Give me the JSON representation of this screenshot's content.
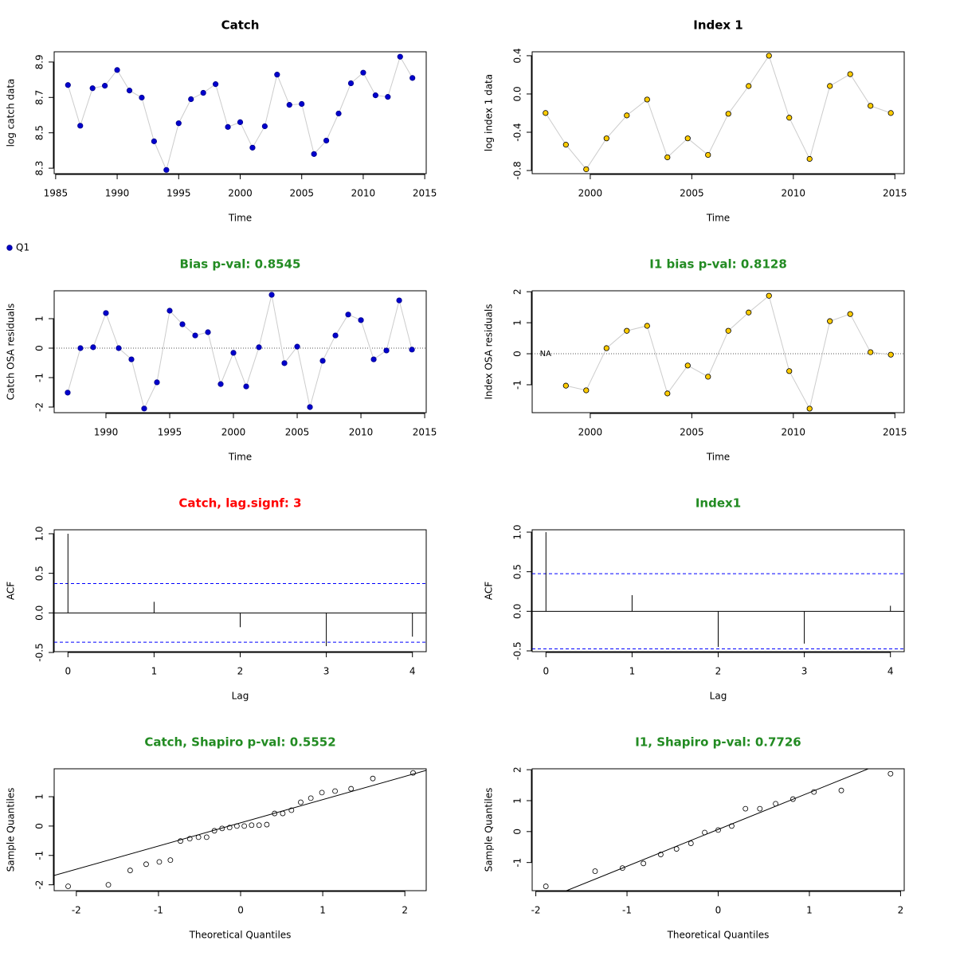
{
  "chart_data": [
    {
      "type": "line",
      "title": "Catch",
      "title_color": "#000000",
      "xlabel": "Time",
      "ylabel": "log catch data",
      "x": [
        1986,
        1987,
        1988,
        1989,
        1990,
        1991,
        1992,
        1993,
        1994,
        1995,
        1996,
        1997,
        1998,
        1999,
        2000,
        2001,
        2002,
        2003,
        2004,
        2005,
        2006,
        2007,
        2008,
        2009,
        2010,
        2011,
        2012,
        2013,
        2014
      ],
      "values": [
        8.77,
        8.54,
        8.752,
        8.766,
        8.855,
        8.739,
        8.699,
        8.452,
        8.29,
        8.554,
        8.69,
        8.726,
        8.775,
        8.533,
        8.56,
        8.416,
        8.537,
        8.829,
        8.658,
        8.663,
        8.38,
        8.456,
        8.609,
        8.78,
        8.84,
        8.712,
        8.703,
        8.93,
        8.81
      ],
      "color": "#0000cd",
      "xlim": [
        1984.88,
        2015.12
      ],
      "ylim": [
        8.269,
        8.958
      ],
      "xticks": [
        1985,
        1990,
        1995,
        2000,
        2005,
        2010,
        2015
      ],
      "yticks": [
        8.3,
        8.5,
        8.7,
        8.9
      ]
    },
    {
      "type": "line",
      "title": "Index 1",
      "title_color": "#000000",
      "xlabel": "Time",
      "ylabel": "log index 1 data",
      "x": [
        1997.8,
        1998.8,
        1999.8,
        2000.8,
        2001.8,
        2002.8,
        2003.8,
        2004.8,
        2005.8,
        2006.8,
        2007.8,
        2008.8,
        2009.8,
        2010.8,
        2011.8,
        2012.8,
        2013.8,
        2014.8
      ],
      "values": [
        -0.199,
        -0.53,
        -0.787,
        -0.464,
        -0.224,
        -0.058,
        -0.662,
        -0.464,
        -0.637,
        -0.207,
        0.083,
        0.4,
        -0.248,
        -0.679,
        0.083,
        0.207,
        -0.124,
        -0.199
      ],
      "color": "#ffcc00",
      "xlim": [
        1997.14,
        2015.46
      ],
      "ylim": [
        -0.833,
        0.441
      ],
      "xticks": [
        2000,
        2005,
        2010,
        2015
      ],
      "yticks": [
        -0.8,
        -0.4,
        {
          "value": 0,
          "label": "0.0"
        },
        0.4
      ]
    },
    {
      "type": "line",
      "title": "Bias p-val: 0.8545",
      "title_color": "#228b22",
      "xlabel": "Time",
      "ylabel": "Catch OSA residuals",
      "series_name": "Q1",
      "x": [
        1987,
        1988,
        1989,
        1990,
        1991,
        1992,
        1993,
        1994,
        1995,
        1996,
        1997,
        1998,
        1999,
        2000,
        2001,
        2002,
        2003,
        2004,
        2005,
        2006,
        2007,
        2008,
        2009,
        2010,
        2011,
        2012,
        2013,
        2014
      ],
      "values": [
        -1.51,
        0,
        0.03,
        1.19,
        0,
        -0.38,
        -2.05,
        -1.16,
        1.27,
        0.81,
        0.43,
        0.54,
        -1.22,
        -0.16,
        -1.3,
        0.03,
        1.81,
        -0.51,
        0.05,
        -2.0,
        -0.43,
        0.43,
        1.14,
        0.95,
        -0.38,
        -0.08,
        1.62,
        -0.05
      ],
      "color": "#0000cd",
      "hline": 0,
      "xlim": [
        1985.94,
        2015.12
      ],
      "ylim": [
        -2.19,
        1.946
      ],
      "xticks": [
        1990,
        1995,
        2000,
        2005,
        2010,
        2015
      ],
      "yticks": [
        -2,
        -1,
        0,
        1
      ]
    },
    {
      "type": "line",
      "title": "I1 bias p-val: 0.8128",
      "title_color": "#228b22",
      "xlabel": "Time",
      "ylabel": "Index OSA residuals",
      "na_label": "NA",
      "x": [
        1997.8,
        1998.8,
        1999.8,
        2000.8,
        2001.8,
        2002.8,
        2003.8,
        2004.8,
        2005.8,
        2006.8,
        2007.8,
        2008.8,
        2009.8,
        2010.8,
        2011.8,
        2012.8,
        2013.8,
        2014.8
      ],
      "values": [
        null,
        -1.03,
        -1.18,
        0.18,
        0.74,
        0.9,
        -1.28,
        -0.38,
        -0.74,
        0.74,
        1.33,
        1.87,
        -0.56,
        -1.77,
        1.05,
        1.28,
        0.05,
        -0.03
      ],
      "color": "#ffcc00",
      "hline": 0,
      "xlim": [
        1997.14,
        2015.46
      ],
      "ylim": [
        -1.9,
        2.03
      ],
      "xticks": [
        2000,
        2005,
        2010,
        2015
      ],
      "yticks": [
        -1,
        0,
        1,
        2
      ]
    },
    {
      "type": "acf",
      "title": "Catch, lag.signf: 3",
      "title_color": "#ff0000",
      "xlabel": "Lag",
      "ylabel": "ACF",
      "x": [
        0,
        1,
        2,
        3,
        4
      ],
      "values": [
        1,
        0.14,
        -0.18,
        -0.42,
        -0.3
      ],
      "conf_limits": [
        0.37,
        -0.37
      ],
      "conf_color": "#0000ff",
      "xlim": [
        -0.16,
        4.16
      ],
      "ylim": [
        -0.49,
        1.05
      ],
      "xticks": [
        0,
        1,
        2,
        3,
        4
      ],
      "yticks": [
        -0.5,
        {
          "value": 0,
          "label": "0.0"
        },
        0.5,
        {
          "value": 1,
          "label": "1.0"
        }
      ]
    },
    {
      "type": "acf",
      "title": "Index1",
      "title_color": "#228b22",
      "xlabel": "Lag",
      "ylabel": "ACF",
      "x": [
        0,
        1,
        2,
        3,
        4
      ],
      "values": [
        1,
        0.204,
        -0.449,
        -0.408,
        0.07
      ],
      "conf_limits": [
        0.475,
        -0.475
      ],
      "conf_color": "#0000ff",
      "xlim": [
        -0.16,
        4.16
      ],
      "ylim": [
        -0.51,
        1.03
      ],
      "xticks": [
        0,
        1,
        2,
        3,
        4
      ],
      "yticks": [
        -0.5,
        {
          "value": 0,
          "label": "0.0"
        },
        0.5,
        {
          "value": 1,
          "label": "1.0"
        }
      ]
    },
    {
      "type": "qq",
      "title": "Catch, Shapiro p-val: 0.5552",
      "title_color": "#228b22",
      "xlabel": "Theoretical Quantiles",
      "ylabel": "Sample Quantiles",
      "x": [
        -2.1,
        -1.61,
        -1.345,
        -1.15,
        -0.99,
        -0.855,
        -0.732,
        -0.619,
        -0.513,
        -0.414,
        -0.319,
        -0.225,
        -0.134,
        -0.045,
        0.045,
        0.134,
        0.225,
        0.319,
        0.414,
        0.513,
        0.619,
        0.732,
        0.855,
        0.99,
        1.15,
        1.345,
        1.61,
        2.1
      ],
      "values": [
        -2.05,
        -2.0,
        -1.51,
        -1.3,
        -1.22,
        -1.16,
        -0.51,
        -0.43,
        -0.38,
        -0.38,
        -0.16,
        -0.08,
        -0.05,
        0,
        0,
        0.03,
        0.03,
        0.05,
        0.43,
        0.43,
        0.54,
        0.81,
        0.95,
        1.14,
        1.19,
        1.27,
        1.62,
        1.81
      ],
      "qq_line": {
        "intercept": 0.11,
        "slope": 0.79
      },
      "xlim": [
        -2.27,
        2.26
      ],
      "ylim": [
        -2.2,
        1.95
      ],
      "xticks": [
        -2,
        -1,
        0,
        1,
        2
      ],
      "yticks": [
        -2,
        -1,
        0,
        1
      ]
    },
    {
      "type": "qq",
      "title": "I1, Shapiro p-val: 0.7726",
      "title_color": "#228b22",
      "xlabel": "Theoretical Quantiles",
      "ylabel": "Sample Quantiles",
      "x": [
        -1.89,
        -1.35,
        -1.05,
        -0.82,
        -0.63,
        -0.457,
        -0.299,
        -0.148,
        0,
        0.148,
        0.299,
        0.457,
        0.63,
        0.82,
        1.05,
        1.35,
        1.89
      ],
      "values": [
        -1.77,
        -1.28,
        -1.18,
        -1.03,
        -0.74,
        -0.56,
        -0.38,
        -0.03,
        0.05,
        0.18,
        0.74,
        0.74,
        0.9,
        1.05,
        1.28,
        1.33,
        1.87
      ],
      "qq_line": {
        "intercept": 0.07,
        "slope": 1.19
      },
      "xlim": [
        -2.04,
        2.04
      ],
      "ylim": [
        -1.91,
        2.03
      ],
      "xticks": [
        -2,
        -1,
        0,
        1,
        2
      ],
      "yticks": [
        -1,
        0,
        1,
        2
      ]
    }
  ]
}
